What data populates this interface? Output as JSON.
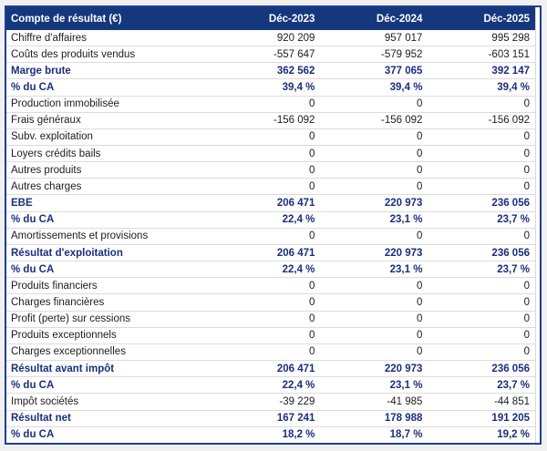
{
  "colors": {
    "header_bg": "#15377E",
    "header_text": "#FFFFFF",
    "emphasis_text": "#1B2E7D",
    "body_text": "#1C1C1C",
    "row_separator": "#DCDCDC",
    "outer_border": "#1E3D96",
    "page_bg": "#F0F0F0"
  },
  "chart_data": {
    "type": "table",
    "title": "Compte de résultat (€)",
    "columns": [
      "Compte de résultat (€)",
      "Déc-2023",
      "Déc-2024",
      "Déc-2025"
    ],
    "rows": [
      {
        "label": "Chiffre d'affaires",
        "values": [
          "920 209",
          "957 017",
          "995 298"
        ],
        "strong": false
      },
      {
        "label": "Coûts des produits vendus",
        "values": [
          "-557 647",
          "-579 952",
          "-603 151"
        ],
        "strong": false
      },
      {
        "label": "Marge brute",
        "values": [
          "362 562",
          "377 065",
          "392 147"
        ],
        "strong": true
      },
      {
        "label": "% du CA",
        "values": [
          "39,4 %",
          "39,4 %",
          "39,4 %"
        ],
        "strong": true
      },
      {
        "label": "Production immobilisée",
        "values": [
          "0",
          "0",
          "0"
        ],
        "strong": false
      },
      {
        "label": "Frais généraux",
        "values": [
          "-156 092",
          "-156 092",
          "-156 092"
        ],
        "strong": false
      },
      {
        "label": "Subv. exploitation",
        "values": [
          "0",
          "0",
          "0"
        ],
        "strong": false
      },
      {
        "label": "Loyers crédits bails",
        "values": [
          "0",
          "0",
          "0"
        ],
        "strong": false
      },
      {
        "label": "Autres produits",
        "values": [
          "0",
          "0",
          "0"
        ],
        "strong": false
      },
      {
        "label": "Autres charges",
        "values": [
          "0",
          "0",
          "0"
        ],
        "strong": false
      },
      {
        "label": "EBE",
        "values": [
          "206 471",
          "220 973",
          "236 056"
        ],
        "strong": true
      },
      {
        "label": "% du CA",
        "values": [
          "22,4 %",
          "23,1 %",
          "23,7 %"
        ],
        "strong": true
      },
      {
        "label": "Amortissements et provisions",
        "values": [
          "0",
          "0",
          "0"
        ],
        "strong": false
      },
      {
        "label": "Résultat d'exploitation",
        "values": [
          "206 471",
          "220 973",
          "236 056"
        ],
        "strong": true
      },
      {
        "label": "% du CA",
        "values": [
          "22,4 %",
          "23,1 %",
          "23,7 %"
        ],
        "strong": true
      },
      {
        "label": "Produits financiers",
        "values": [
          "0",
          "0",
          "0"
        ],
        "strong": false
      },
      {
        "label": "Charges financières",
        "values": [
          "0",
          "0",
          "0"
        ],
        "strong": false
      },
      {
        "label": "Profit (perte) sur cessions",
        "values": [
          "0",
          "0",
          "0"
        ],
        "strong": false
      },
      {
        "label": "Produits exceptionnels",
        "values": [
          "0",
          "0",
          "0"
        ],
        "strong": false
      },
      {
        "label": "Charges exceptionnelles",
        "values": [
          "0",
          "0",
          "0"
        ],
        "strong": false
      },
      {
        "label": "Résultat avant impôt",
        "values": [
          "206 471",
          "220 973",
          "236 056"
        ],
        "strong": true
      },
      {
        "label": "% du CA",
        "values": [
          "22,4 %",
          "23,1 %",
          "23,7 %"
        ],
        "strong": true
      },
      {
        "label": "Impôt sociétés",
        "values": [
          "-39 229",
          "-41 985",
          "-44 851"
        ],
        "strong": false
      },
      {
        "label": "Résultat net",
        "values": [
          "167 241",
          "178 988",
          "191 205"
        ],
        "strong": true
      },
      {
        "label": "% du CA",
        "values": [
          "18,2 %",
          "18,7 %",
          "19,2 %"
        ],
        "strong": true
      }
    ]
  }
}
